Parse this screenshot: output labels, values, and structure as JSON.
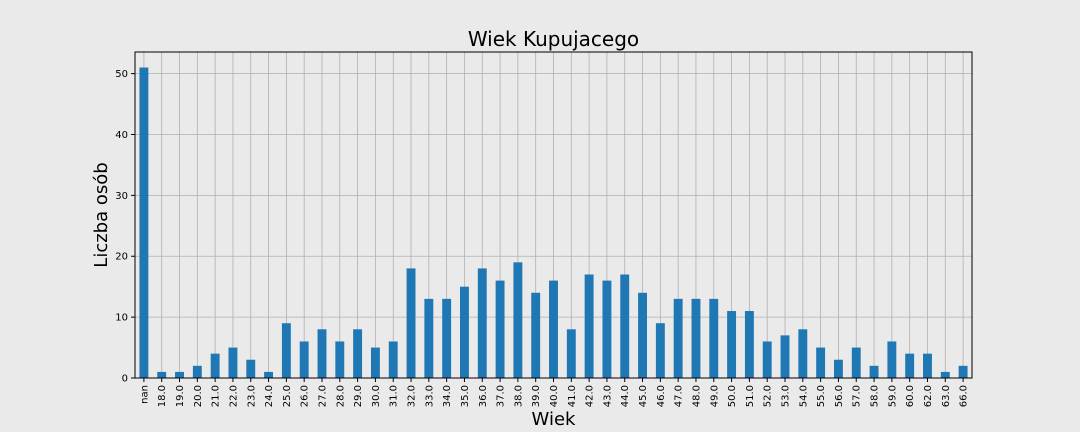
{
  "chart_data": {
    "type": "bar",
    "title": "Wiek Kupujacego",
    "xlabel": "Wiek",
    "ylabel": "Liczba osób",
    "categories": [
      "nan",
      "18.0",
      "19.0",
      "20.0",
      "21.0",
      "22.0",
      "23.0",
      "24.0",
      "25.0",
      "26.0",
      "27.0",
      "28.0",
      "29.0",
      "30.0",
      "31.0",
      "32.0",
      "33.0",
      "34.0",
      "35.0",
      "36.0",
      "37.0",
      "38.0",
      "39.0",
      "40.0",
      "41.0",
      "42.0",
      "43.0",
      "44.0",
      "45.0",
      "46.0",
      "47.0",
      "48.0",
      "49.0",
      "50.0",
      "51.0",
      "52.0",
      "53.0",
      "54.0",
      "55.0",
      "56.0",
      "57.0",
      "58.0",
      "59.0",
      "60.0",
      "62.0",
      "63.0",
      "66.0"
    ],
    "values": [
      51,
      1,
      1,
      2,
      4,
      5,
      3,
      1,
      9,
      6,
      8,
      6,
      8,
      5,
      6,
      18,
      13,
      13,
      15,
      18,
      16,
      19,
      14,
      16,
      8,
      17,
      16,
      17,
      14,
      9,
      13,
      13,
      13,
      11,
      11,
      6,
      7,
      8,
      5,
      3,
      5,
      2,
      6,
      4,
      4,
      1,
      2
    ],
    "ylim": [
      0,
      53.55
    ],
    "yticks": [
      0,
      10,
      20,
      30,
      40,
      50
    ],
    "grid": true,
    "legend": "none",
    "colors": {
      "bar": "#1f77b4",
      "bar_edge": "#eaeaea",
      "background": "#eaeaea",
      "grid": "#b0b0b0",
      "axis": "#000000"
    }
  }
}
